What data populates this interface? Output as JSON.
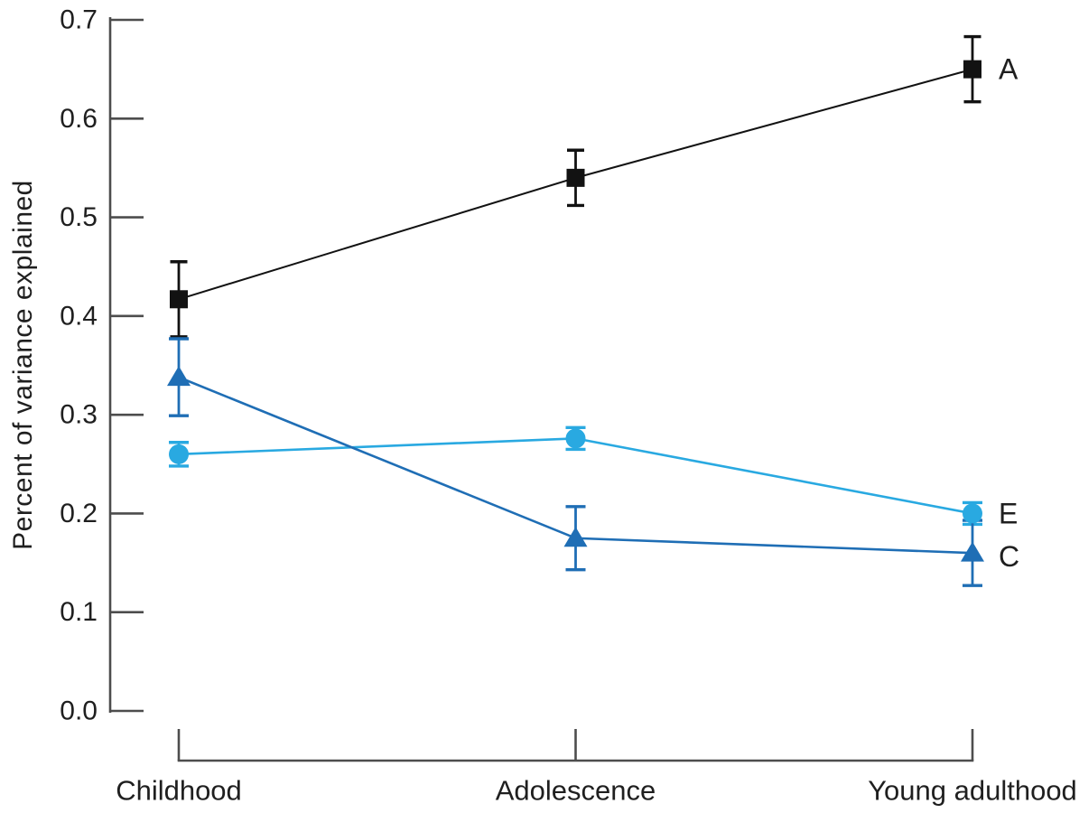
{
  "chart_data": {
    "type": "line",
    "title": "",
    "categories": [
      "Childhood",
      "Adolescence",
      "Young adulthood"
    ],
    "series": [
      {
        "name": "A",
        "label": "A",
        "marker": "square",
        "color": "#121212",
        "values": [
          0.417,
          0.54,
          0.65
        ],
        "errors": [
          0.038,
          0.028,
          0.033
        ]
      },
      {
        "name": "E",
        "label": "E",
        "marker": "circle",
        "color": "#29a9e1",
        "values": [
          0.26,
          0.276,
          0.2
        ],
        "errors": [
          0.012,
          0.011,
          0.011
        ]
      },
      {
        "name": "C",
        "label": "C",
        "marker": "triangle",
        "color": "#1f6eb5",
        "values": [
          0.338,
          0.175,
          0.16
        ],
        "errors": [
          0.039,
          0.032,
          0.033
        ]
      }
    ],
    "xlabel": "",
    "ylabel": "Percent of variance explained",
    "ylim": [
      0.0,
      0.7
    ],
    "yticks": [
      "0.0",
      "0.1",
      "0.2",
      "0.3",
      "0.4",
      "0.5",
      "0.6",
      "0.7"
    ],
    "grid": false,
    "legend_position": "right-of-last-point",
    "axis_color": "#4d4d4d",
    "text_color": "#1f1f1f"
  }
}
